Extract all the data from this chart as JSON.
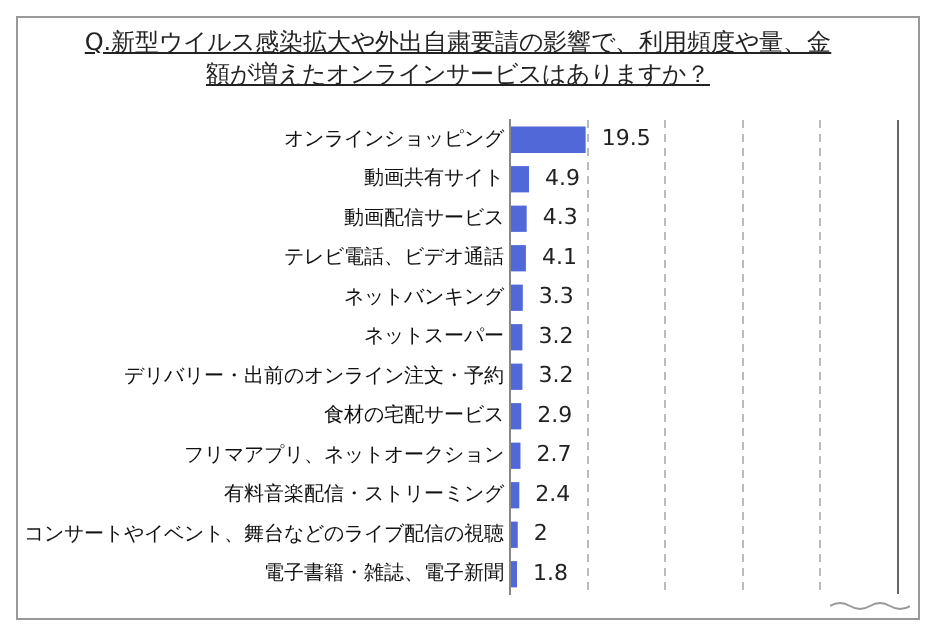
{
  "chart_data": {
    "type": "bar",
    "orientation": "horizontal",
    "title": "Q.新型ウイルス感染拡大や外出自粛要請の影響で、利用頻度や量、金額が増えたオンラインサービスはありますか？",
    "categories": [
      "オンラインショッピング",
      "動画共有サイト",
      "動画配信サービス",
      "テレビ電話、ビデオ通話",
      "ネットバンキング",
      "ネットスーパー",
      "デリバリー・出前のオンライン注文・予約",
      "食材の宅配サービス",
      "フリマアプリ、ネットオークション",
      "有料音楽配信・ストリーミング",
      "コンサートやイベント、舞台などのライブ配信の視聴",
      "電子書籍・雑誌、電子新聞"
    ],
    "values": [
      19.5,
      4.9,
      4.3,
      4.1,
      3.3,
      3.2,
      3.2,
      2.9,
      2.7,
      2.4,
      2.0,
      1.8
    ],
    "color": "#5068d8",
    "data_labels": true,
    "grid": "x",
    "tick_labels": "y",
    "xlim": [
      0,
      100
    ],
    "xticks": [
      {
        "value": 0,
        "label": null
      },
      {
        "value": 20,
        "label": null
      },
      {
        "value": 40,
        "label": null
      },
      {
        "value": 60,
        "label": null
      },
      {
        "value": 80,
        "label": null
      }
    ]
  }
}
